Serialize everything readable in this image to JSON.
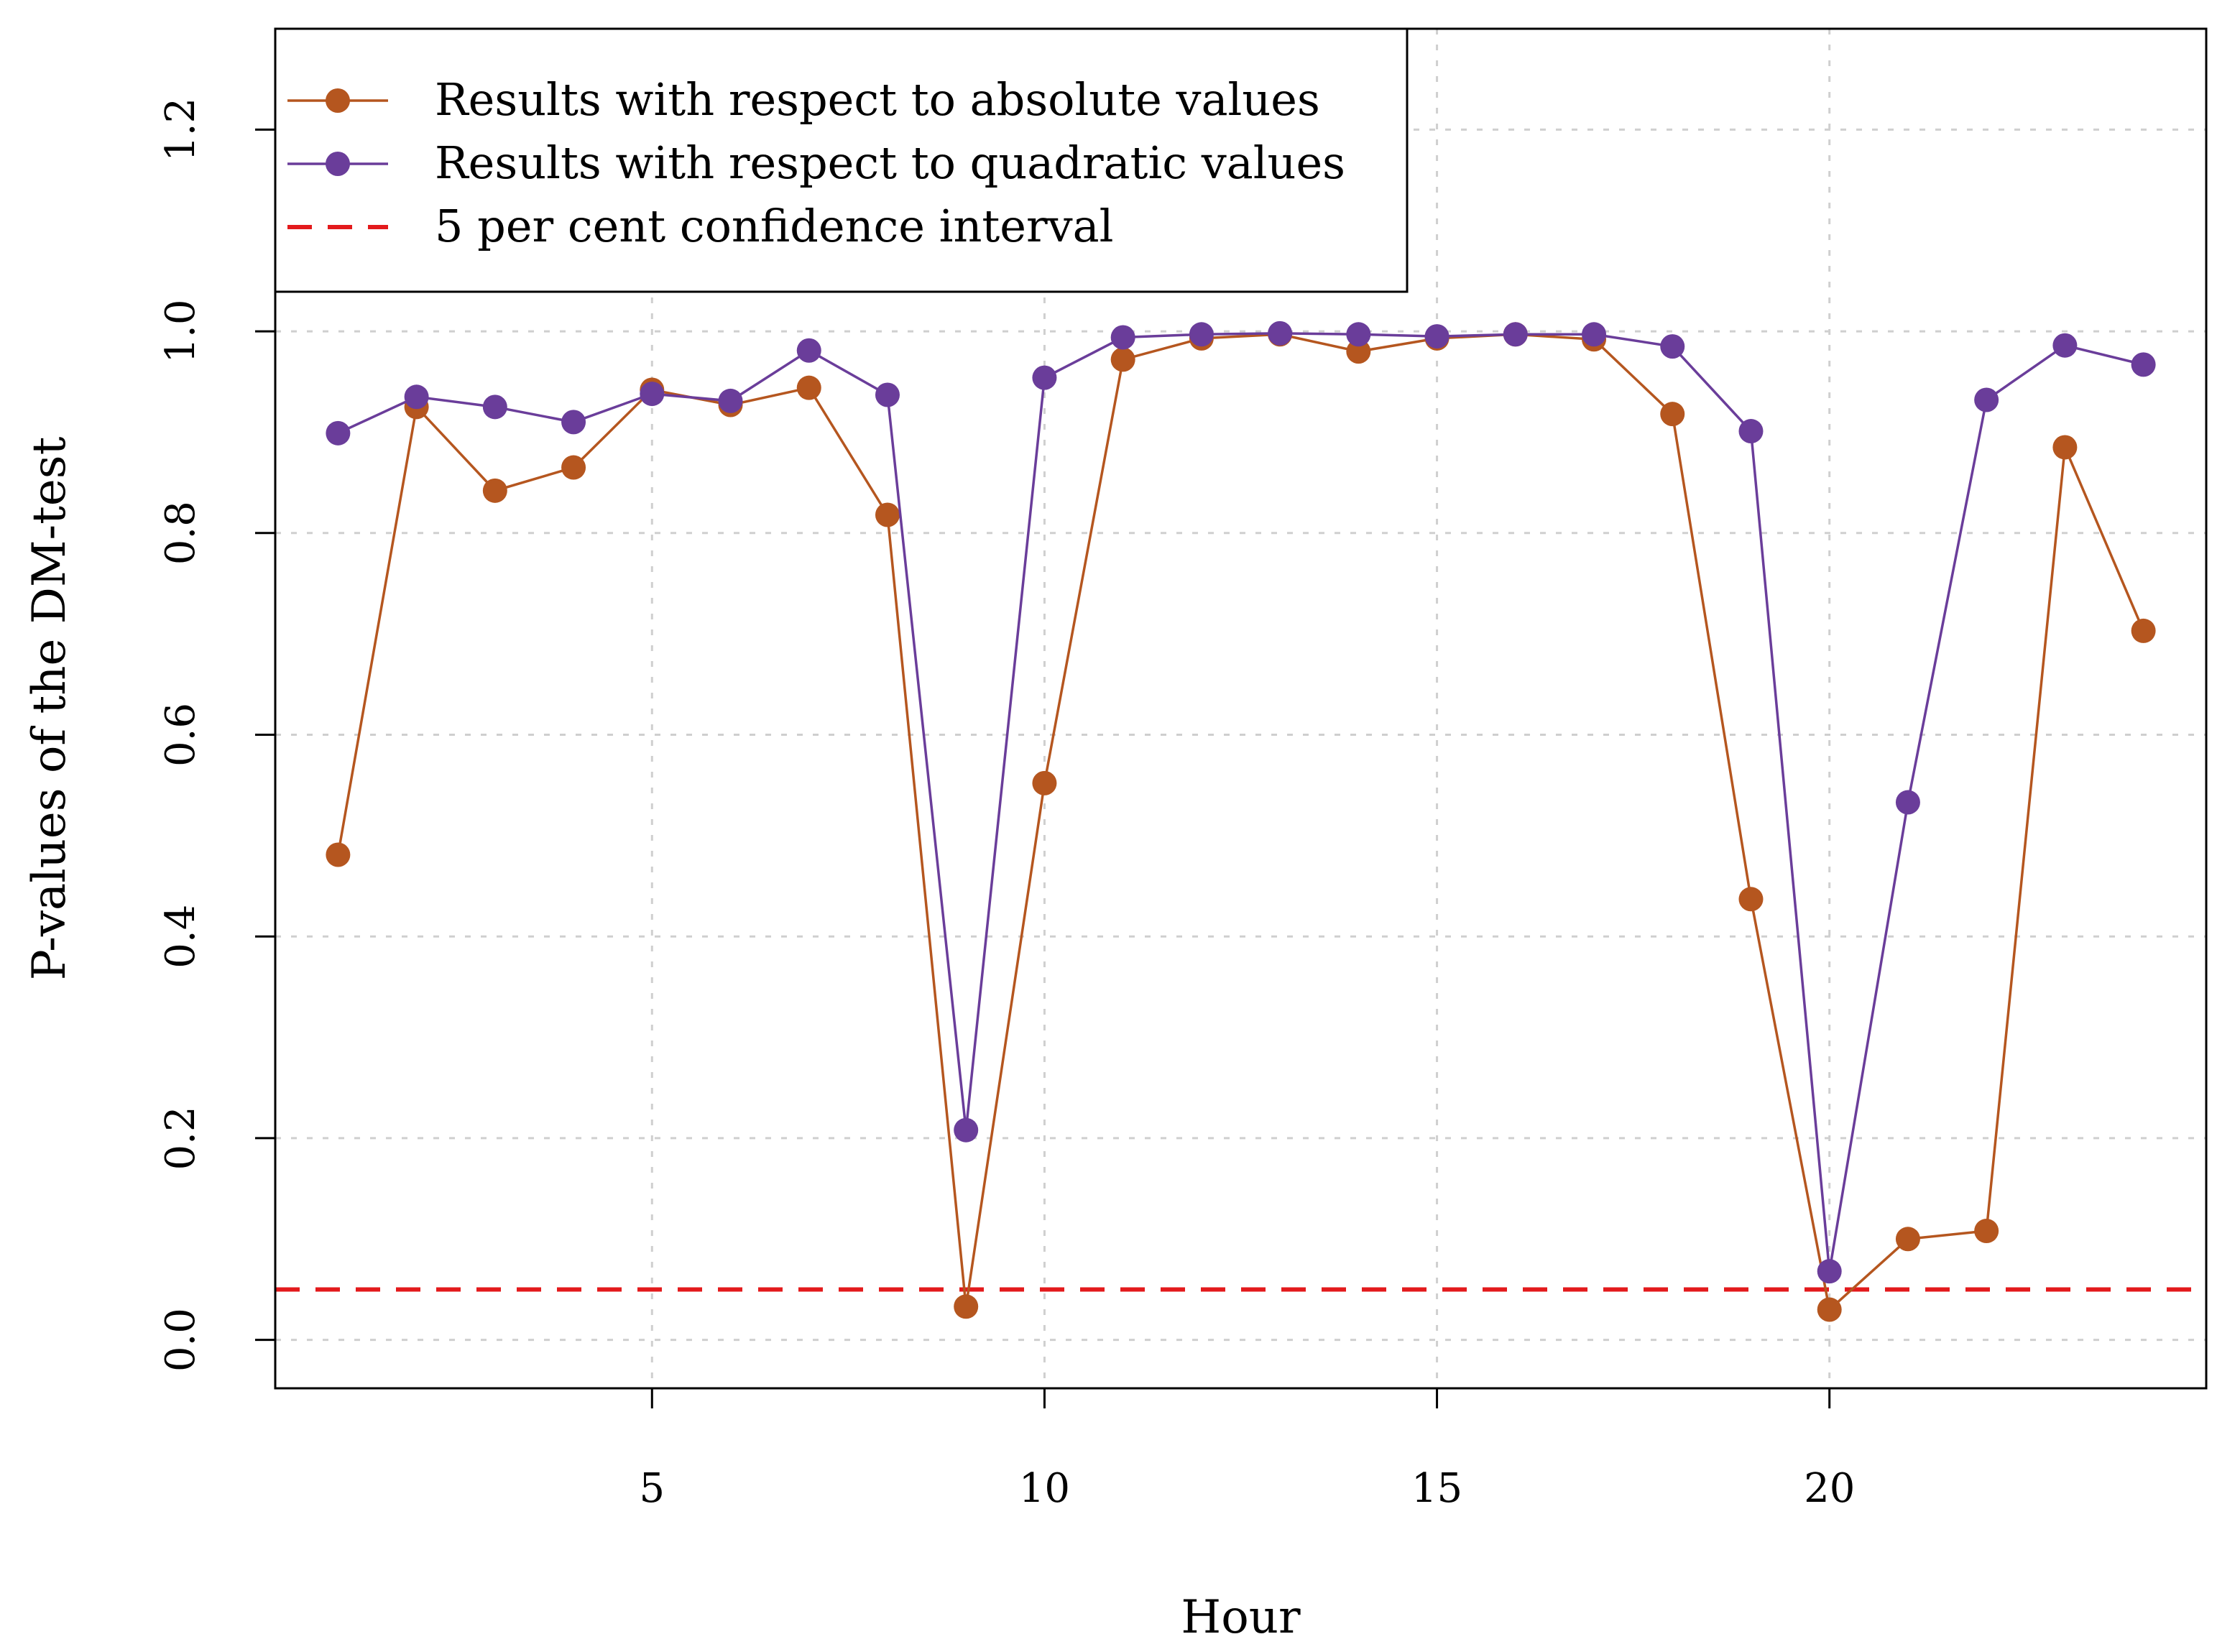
{
  "chart_data": {
    "type": "line",
    "xlabel": "Hour",
    "ylabel": "P-values of the DM-test",
    "xlim": [
      0.2,
      24.8
    ],
    "ylim": [
      -0.048,
      1.3
    ],
    "x_ticks": [
      5,
      10,
      15,
      20
    ],
    "y_ticks": [
      0.0,
      0.2,
      0.4,
      0.6,
      0.8,
      1.0,
      1.2
    ],
    "y_tick_labels": [
      "0.0",
      "0.2",
      "0.4",
      "0.6",
      "0.8",
      "1.0",
      "1.2"
    ],
    "x_tick_labels": [
      "5",
      "10",
      "15",
      "20"
    ],
    "grid": true,
    "legend_position": "top-left",
    "x": [
      1,
      2,
      3,
      4,
      5,
      6,
      7,
      8,
      9,
      10,
      11,
      12,
      13,
      14,
      15,
      16,
      17,
      18,
      19,
      20,
      21,
      22,
      23,
      24
    ],
    "series": [
      {
        "name": "Results with respect to absolute values",
        "color": "#b5561f",
        "values": [
          0.481,
          0.925,
          0.842,
          0.865,
          0.942,
          0.927,
          0.944,
          0.818,
          0.033,
          0.552,
          0.972,
          0.993,
          0.997,
          0.98,
          0.993,
          0.997,
          0.992,
          0.918,
          0.437,
          0.03,
          0.1,
          0.108,
          0.885,
          0.703
        ]
      },
      {
        "name": "Results with respect to quadratic values",
        "color": "#6a3d9a",
        "values": [
          0.899,
          0.935,
          0.925,
          0.91,
          0.938,
          0.931,
          0.981,
          0.937,
          0.208,
          0.954,
          0.994,
          0.997,
          0.998,
          0.997,
          0.995,
          0.997,
          0.997,
          0.985,
          0.901,
          0.068,
          0.533,
          0.932,
          0.986,
          0.967
        ]
      }
    ],
    "reference_line": {
      "name": "5 per cent confidence interval",
      "value": 0.05,
      "color": "#e31a1c",
      "style": "dashed"
    }
  }
}
